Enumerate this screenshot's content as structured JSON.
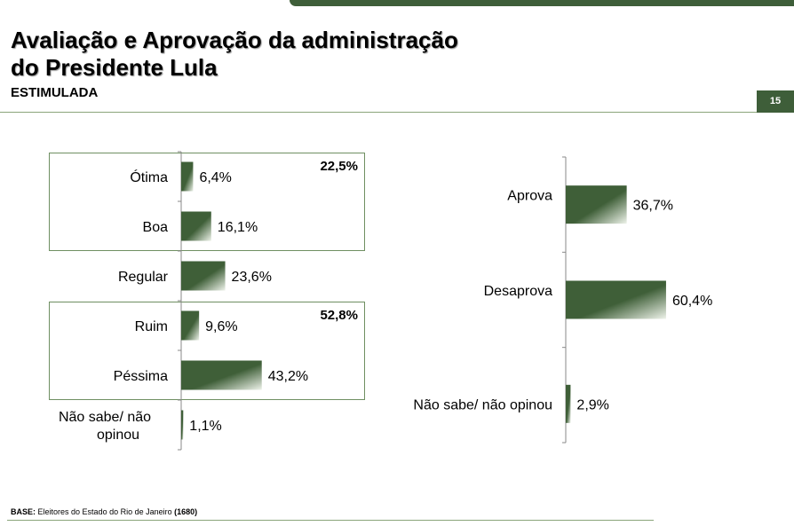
{
  "header": {
    "title_line1": "Avaliação e Aprovação da administração",
    "title_line2": "do Presidente Lula",
    "subtitle": "ESTIMULADA",
    "page_number": "15"
  },
  "colors": {
    "accent": "#3e5e39",
    "bar_dark": "#3f5f38",
    "bar_light": "#eef3ea",
    "group_border": "#6f8f62"
  },
  "chart_data": [
    {
      "type": "bar",
      "orientation": "horizontal",
      "categories": [
        "Ótima",
        "Boa",
        "Regular",
        "Ruim",
        "Péssima",
        "Não sabe/ não opinou"
      ],
      "values": [
        6.4,
        16.1,
        23.6,
        9.6,
        43.2,
        1.1
      ],
      "value_labels": [
        "6,4%",
        "16,1%",
        "23,6%",
        "9,6%",
        "43,2%",
        "1,1%"
      ],
      "groups": [
        {
          "label": "22,5%",
          "categories": [
            "Ótima",
            "Boa"
          ]
        },
        {
          "label": "52,8%",
          "categories": [
            "Ruim",
            "Péssima"
          ]
        }
      ],
      "unit": "%"
    },
    {
      "type": "bar",
      "orientation": "horizontal",
      "categories": [
        "Aprova",
        "Desaprova",
        "Não sabe/ não opinou"
      ],
      "values": [
        36.7,
        60.4,
        2.9
      ],
      "value_labels": [
        "36,7%",
        "60,4%",
        "2,9%"
      ],
      "unit": "%"
    }
  ],
  "footer": {
    "base_label": "BASE:",
    "base_text": "Eleitores do Estado do Rio de Janeiro",
    "sample": "(1680)"
  }
}
